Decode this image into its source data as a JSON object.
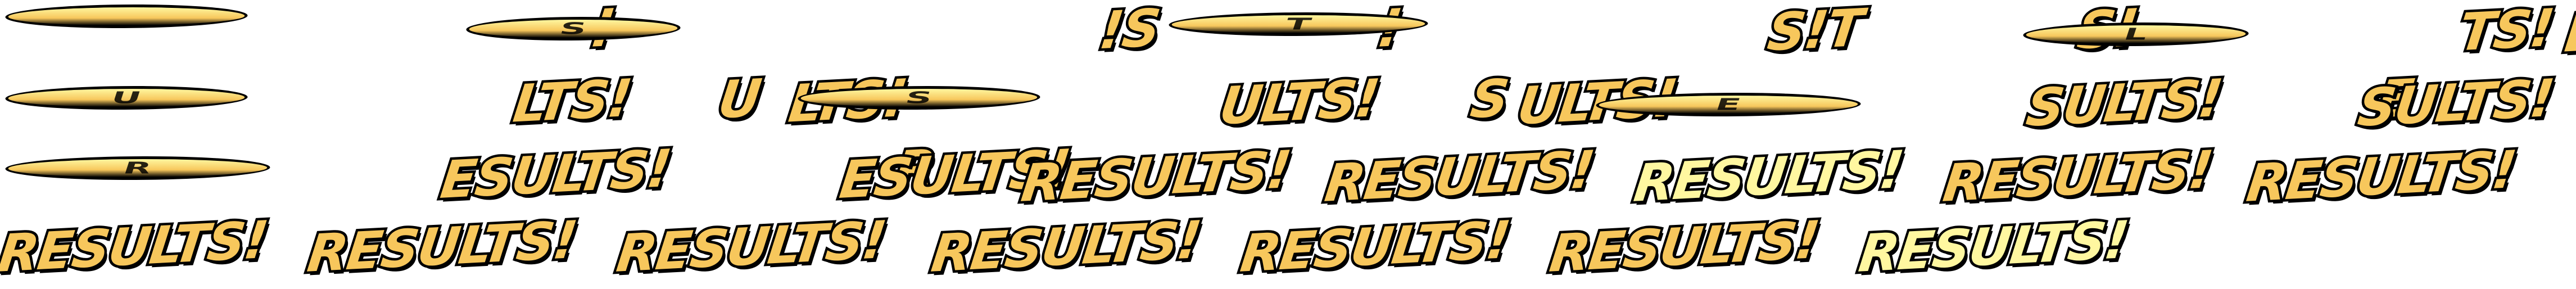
{
  "colors": {
    "fill": "#f7c75c",
    "fill_light": "#fff7a0",
    "outline": "#000000",
    "background": "#ffffff"
  },
  "word": "RESULTS!",
  "frames": [
    {
      "text": "",
      "streak": true,
      "streak_letter": "",
      "variant": "fill"
    },
    {
      "text": "!",
      "streak": false,
      "variant": "fill"
    },
    {
      "text": "",
      "streak": true,
      "streak_letter": "S",
      "variant": "fill"
    },
    {
      "text": "!S",
      "streak": false,
      "variant": "fill"
    },
    {
      "text": "!",
      "streak": false,
      "variant": "fill"
    },
    {
      "text": "",
      "streak": true,
      "streak_letter": "T",
      "variant": "fill"
    },
    {
      "text": "S!T",
      "streak": false,
      "variant": "fill"
    },
    {
      "text": "S!",
      "streak": false,
      "variant": "fill"
    },
    {
      "text": "",
      "streak": true,
      "streak_letter": "L",
      "variant": "fill"
    },
    {
      "text": "TS!",
      "streak": false,
      "variant": "fill"
    },
    {
      "text": "LTS!",
      "streak": false,
      "variant": "fill"
    },
    {
      "text": "",
      "streak": true,
      "streak_letter": "U",
      "variant": "fill"
    },
    {
      "text": "LTS!",
      "streak": false,
      "variant": "fill"
    },
    {
      "text": "U",
      "streak": false,
      "variant": "fill"
    },
    {
      "text": "LTS!",
      "streak": false,
      "variant": "fill"
    },
    {
      "text": "",
      "streak": true,
      "streak_letter": "S",
      "variant": "fill"
    },
    {
      "text": "ULTS!",
      "streak": false,
      "variant": "fill"
    },
    {
      "text": "S",
      "streak": false,
      "variant": "fill"
    },
    {
      "text": "ULTS!",
      "streak": false,
      "variant": "fill"
    },
    {
      "text": "",
      "streak": true,
      "streak_letter": "E",
      "variant": "fill"
    },
    {
      "text": "SULTS!",
      "streak": false,
      "variant": "fill"
    },
    {
      "text": "E",
      "streak": false,
      "variant": "fill"
    },
    {
      "text": "SULTS!",
      "streak": false,
      "variant": "fill"
    },
    {
      "text": "",
      "streak": true,
      "streak_letter": "R",
      "variant": "fill"
    },
    {
      "text": "ESULTS!",
      "streak": false,
      "variant": "fill"
    },
    {
      "text": "R",
      "streak": false,
      "variant": "fill"
    },
    {
      "text": "ESULTS!",
      "streak": false,
      "variant": "fill"
    },
    {
      "text": "RESULTS!",
      "streak": false,
      "variant": "fill"
    },
    {
      "text": "RESULTS!",
      "streak": false,
      "variant": "fill"
    },
    {
      "text": "RESULTS!",
      "streak": false,
      "variant": "light"
    },
    {
      "text": "RESULTS!",
      "streak": false,
      "variant": "fill"
    },
    {
      "text": "RESULTS!",
      "streak": false,
      "variant": "fill"
    },
    {
      "text": "RESULTS!",
      "streak": false,
      "variant": "fill"
    },
    {
      "text": "RESULTS!",
      "streak": false,
      "variant": "fill"
    },
    {
      "text": "RESULTS!",
      "streak": false,
      "variant": "fill"
    },
    {
      "text": "RESULTS!",
      "streak": false,
      "variant": "fill"
    },
    {
      "text": "RESULTS!",
      "streak": false,
      "variant": "fill"
    },
    {
      "text": "RESULTS!",
      "streak": false,
      "variant": "fill"
    },
    {
      "text": "RESULTS!",
      "streak": false,
      "variant": "light"
    }
  ]
}
